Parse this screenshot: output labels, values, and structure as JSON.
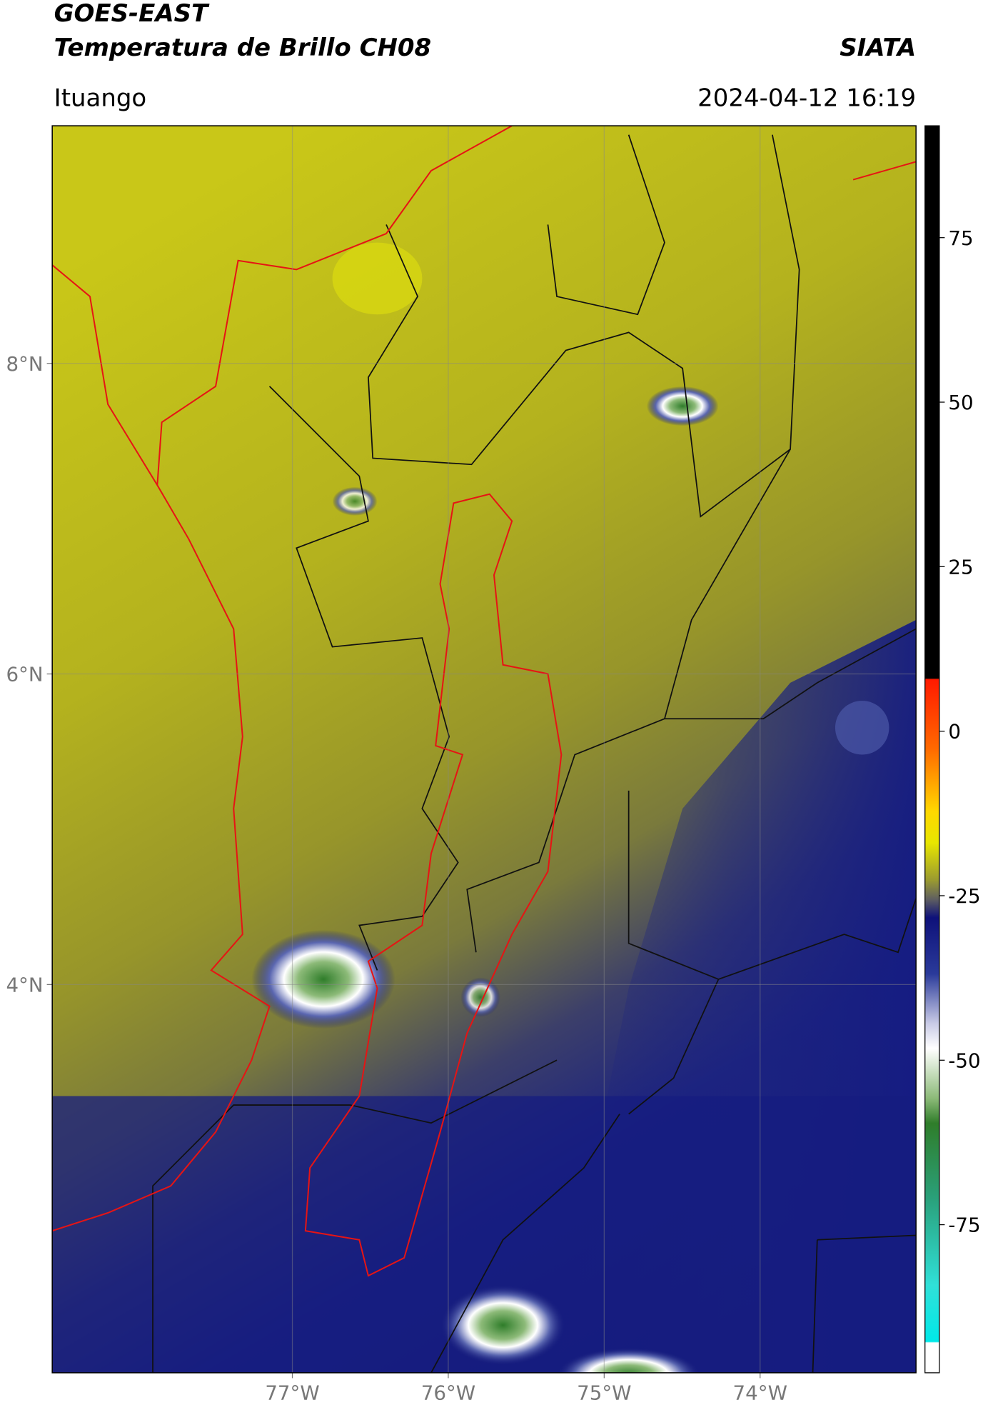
{
  "header": {
    "title": "GOES-EAST",
    "subtitle": "Temperatura de Brillo CH08",
    "brand": "SIATA",
    "location": "Ituango",
    "datetime": "2024-04-12 16:19"
  },
  "map": {
    "xlim": [
      -78.54,
      -73.0
    ],
    "ylim": [
      1.5,
      9.53
    ],
    "xticks": [
      {
        "value": -77,
        "label": "77°W"
      },
      {
        "value": -76,
        "label": "76°W"
      },
      {
        "value": -75,
        "label": "75°W"
      },
      {
        "value": -74,
        "label": "74°W"
      }
    ],
    "yticks": [
      {
        "value": 8,
        "label": "8°N"
      },
      {
        "value": 6,
        "label": "6°N"
      },
      {
        "value": 4,
        "label": "4°N"
      }
    ]
  },
  "colorbar": {
    "lim": [
      -97.5,
      92
    ],
    "ticks": [
      75,
      50,
      25,
      0,
      -25,
      -50,
      -75
    ]
  }
}
